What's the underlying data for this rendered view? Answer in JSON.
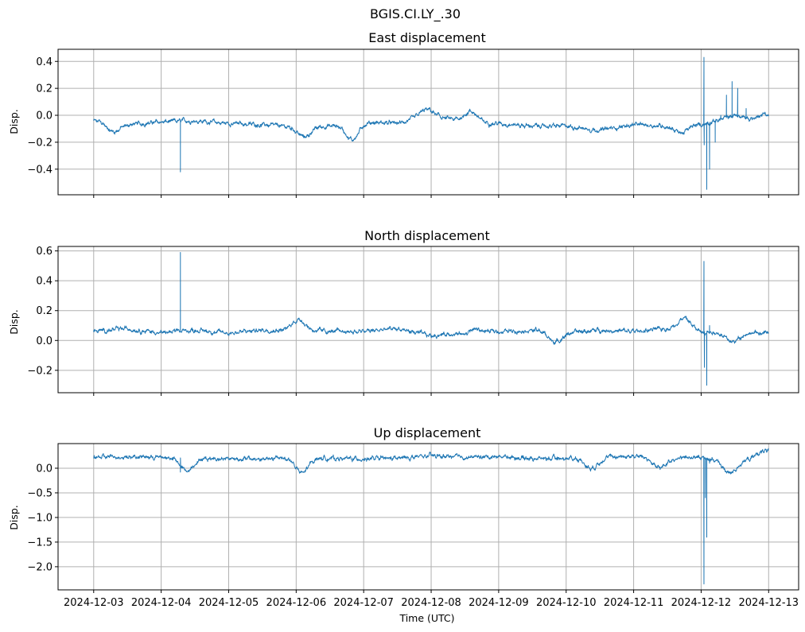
{
  "figure": {
    "suptitle": "BGIS.CI.LY_.30",
    "xlabel": "Time (UTC)",
    "line_color": "#1f77b4",
    "grid_color": "#b0b0b0",
    "x_ticks": [
      "2024-12-03",
      "2024-12-04",
      "2024-12-05",
      "2024-12-06",
      "2024-12-07",
      "2024-12-08",
      "2024-12-09",
      "2024-12-10",
      "2024-12-11",
      "2024-12-12",
      "2024-12-13"
    ]
  },
  "chart_data": [
    {
      "type": "line",
      "title": "East displacement",
      "ylabel": "Disp.",
      "xlim": [
        "2024-12-02T11:20",
        "2024-12-13T10:40"
      ],
      "ylim": [
        -0.59,
        0.49
      ],
      "yticks": [
        -0.4,
        -0.2,
        0.0,
        0.2,
        0.4
      ],
      "ytick_labels": [
        "−0.4",
        "−0.2",
        "0.0",
        "0.2",
        "0.4"
      ],
      "grid": true,
      "series": [
        {
          "baseline": [
            [
              "2024-12-03T00:00",
              -0.04
            ],
            [
              "2024-12-03T12:00",
              -0.07
            ],
            [
              "2024-12-04T00:00",
              -0.05
            ],
            [
              "2024-12-04T12:00",
              -0.04
            ],
            [
              "2024-12-05T00:00",
              -0.06
            ],
            [
              "2024-12-05T12:00",
              -0.07
            ],
            [
              "2024-12-06T00:00",
              -0.09
            ],
            [
              "2024-12-06T12:00",
              -0.08
            ],
            [
              "2024-12-07T00:00",
              -0.05
            ],
            [
              "2024-12-07T12:00",
              -0.06
            ],
            [
              "2024-12-08T00:00",
              0.0
            ],
            [
              "2024-12-08T12:00",
              -0.05
            ],
            [
              "2024-12-09T00:00",
              -0.06
            ],
            [
              "2024-12-09T12:00",
              -0.08
            ],
            [
              "2024-12-10T00:00",
              -0.08
            ],
            [
              "2024-12-10T12:00",
              -0.11
            ],
            [
              "2024-12-11T00:00",
              -0.07
            ],
            [
              "2024-12-11T12:00",
              -0.08
            ],
            [
              "2024-12-12T00:00",
              -0.07
            ],
            [
              "2024-12-12T12:00",
              0.0
            ],
            [
              "2024-12-13T00:00",
              -0.07
            ]
          ],
          "events": [
            [
              "2024-12-03T07:00",
              -0.12
            ],
            [
              "2024-12-06T03:00",
              -0.16
            ],
            [
              "2024-12-06T20:00",
              -0.18
            ],
            [
              "2024-12-07T22:00",
              0.04
            ],
            [
              "2024-12-08T14:00",
              0.03
            ],
            [
              "2024-12-11T17:00",
              -0.13
            ],
            [
              "2024-12-12T18:00",
              -0.03
            ],
            [
              "2024-12-12T23:00",
              0.02
            ],
            [
              "2024-12-13T00:00",
              -0.08
            ]
          ],
          "spikes": [
            [
              "2024-12-04T06:50",
              -0.42
            ],
            [
              "2024-12-12T01:00",
              0.43
            ],
            [
              "2024-12-12T01:05",
              -0.22
            ],
            [
              "2024-12-12T02:00",
              -0.55
            ],
            [
              "2024-12-12T03:00",
              -0.4
            ],
            [
              "2024-12-12T05:00",
              -0.2
            ],
            [
              "2024-12-12T07:00",
              0.0
            ],
            [
              "2024-12-12T09:00",
              0.15
            ],
            [
              "2024-12-12T11:00",
              0.25
            ],
            [
              "2024-12-12T13:00",
              0.2
            ],
            [
              "2024-12-12T16:00",
              0.05
            ]
          ]
        }
      ]
    },
    {
      "type": "line",
      "title": "North displacement",
      "ylabel": "Disp.",
      "xlim": [
        "2024-12-02T11:20",
        "2024-12-13T10:40"
      ],
      "ylim": [
        -0.35,
        0.63
      ],
      "yticks": [
        -0.2,
        0.0,
        0.2,
        0.4,
        0.6
      ],
      "ytick_labels": [
        "−0.2",
        "0.0",
        "0.2",
        "0.4",
        "0.6"
      ],
      "grid": true,
      "series": [
        {
          "baseline": [
            [
              "2024-12-03T00:00",
              0.06
            ],
            [
              "2024-12-03T12:00",
              0.08
            ],
            [
              "2024-12-04T00:00",
              0.05
            ],
            [
              "2024-12-04T12:00",
              0.07
            ],
            [
              "2024-12-05T00:00",
              0.05
            ],
            [
              "2024-12-05T12:00",
              0.07
            ],
            [
              "2024-12-06T00:00",
              0.07
            ],
            [
              "2024-12-06T12:00",
              0.06
            ],
            [
              "2024-12-07T00:00",
              0.06
            ],
            [
              "2024-12-07T12:00",
              0.08
            ],
            [
              "2024-12-08T00:00",
              0.03
            ],
            [
              "2024-12-08T12:00",
              0.06
            ],
            [
              "2024-12-09T00:00",
              0.06
            ],
            [
              "2024-12-09T12:00",
              0.07
            ],
            [
              "2024-12-10T00:00",
              0.05
            ],
            [
              "2024-12-10T12:00",
              0.07
            ],
            [
              "2024-12-11T00:00",
              0.06
            ],
            [
              "2024-12-11T12:00",
              0.08
            ],
            [
              "2024-12-12T00:00",
              0.06
            ],
            [
              "2024-12-12T12:00",
              0.05
            ],
            [
              "2024-12-13T00:00",
              0.05
            ]
          ],
          "events": [
            [
              "2024-12-06T01:00",
              0.14
            ],
            [
              "2024-12-08T14:00",
              0.12
            ],
            [
              "2024-12-08T13:00",
              0.0
            ],
            [
              "2024-12-09T20:00",
              -0.01
            ],
            [
              "2024-12-11T18:00",
              0.15
            ],
            [
              "2024-12-12T11:00",
              -0.01
            ]
          ],
          "spikes": [
            [
              "2024-12-04T06:50",
              0.59
            ],
            [
              "2024-12-12T01:00",
              0.53
            ],
            [
              "2024-12-12T01:10",
              -0.18
            ],
            [
              "2024-12-12T02:00",
              -0.3
            ],
            [
              "2024-12-12T03:00",
              0.1
            ]
          ]
        }
      ]
    },
    {
      "type": "line",
      "title": "Up displacement",
      "ylabel": "Disp.",
      "xlim": [
        "2024-12-02T11:20",
        "2024-12-13T10:40"
      ],
      "ylim": [
        -2.47,
        0.5
      ],
      "yticks": [
        -2.0,
        -1.5,
        -1.0,
        -0.5,
        0.0
      ],
      "ytick_labels": [
        "−2.0",
        "−1.5",
        "−1.0",
        "−0.5",
        "0.0"
      ],
      "grid": true,
      "series": [
        {
          "baseline": [
            [
              "2024-12-03T00:00",
              0.22
            ],
            [
              "2024-12-03T12:00",
              0.24
            ],
            [
              "2024-12-04T00:00",
              0.22
            ],
            [
              "2024-12-04T12:00",
              0.2
            ],
            [
              "2024-12-05T00:00",
              0.2
            ],
            [
              "2024-12-05T12:00",
              0.18
            ],
            [
              "2024-12-06T00:00",
              0.23
            ],
            [
              "2024-12-06T12:00",
              0.2
            ],
            [
              "2024-12-07T00:00",
              0.19
            ],
            [
              "2024-12-07T12:00",
              0.2
            ],
            [
              "2024-12-08T00:00",
              0.25
            ],
            [
              "2024-12-08T12:00",
              0.22
            ],
            [
              "2024-12-09T00:00",
              0.24
            ],
            [
              "2024-12-09T12:00",
              0.2
            ],
            [
              "2024-12-10T00:00",
              0.2
            ],
            [
              "2024-12-10T12:00",
              0.22
            ],
            [
              "2024-12-11T00:00",
              0.25
            ],
            [
              "2024-12-11T12:00",
              0.2
            ],
            [
              "2024-12-12T00:00",
              0.22
            ],
            [
              "2024-12-12T12:00",
              0.12
            ],
            [
              "2024-12-13T00:00",
              0.25
            ]
          ],
          "events": [
            [
              "2024-12-04T09:00",
              -0.05
            ],
            [
              "2024-12-06T02:00",
              -0.1
            ],
            [
              "2024-12-10T09:00",
              0.0
            ],
            [
              "2024-12-11T09:00",
              0.0
            ],
            [
              "2024-12-12T10:00",
              -0.1
            ],
            [
              "2024-12-12T22:00",
              0.35
            ]
          ],
          "spikes": [
            [
              "2024-12-04T06:50",
              -0.08
            ],
            [
              "2024-12-12T01:00",
              -2.35
            ],
            [
              "2024-12-12T01:30",
              -0.6
            ],
            [
              "2024-12-12T02:00",
              -1.4
            ],
            [
              "2024-12-12T03:00",
              0.1
            ]
          ]
        }
      ]
    }
  ]
}
